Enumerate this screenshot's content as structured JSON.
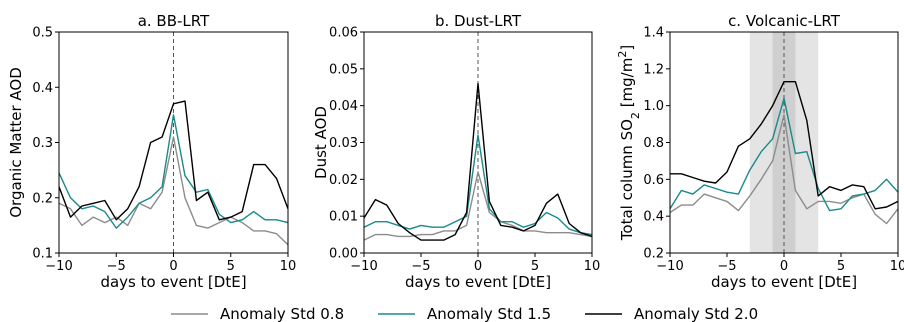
{
  "legend": {
    "entries": [
      {
        "label": "Anomaly Std 0.8",
        "color": "#8c8c8c"
      },
      {
        "label": "Anomaly Std 1.5",
        "color": "#1a8a8a"
      },
      {
        "label": "Anomaly Std 2.0",
        "color": "#000000"
      }
    ]
  },
  "chart_data": [
    {
      "type": "line",
      "title": "a. BB-LRT",
      "xlabel": "days to event [DtE]",
      "ylabel": "Organic Matter AOD",
      "xlim": [
        -10,
        10
      ],
      "ylim": [
        0.1,
        0.5
      ],
      "xticks": [
        -10,
        -5,
        0,
        5,
        10
      ],
      "yticks": [
        0.1,
        0.2,
        0.3,
        0.4,
        0.5
      ],
      "xtick_labels": [
        "−10",
        "−5",
        "0",
        "5",
        "10"
      ],
      "ytick_labels": [
        "0.1",
        "0.2",
        "0.3",
        "0.4",
        "0.5"
      ],
      "event_line": 0,
      "x": [
        -10,
        -9,
        -8,
        -7,
        -6,
        -5,
        -4,
        -3,
        -2,
        -1,
        0,
        1,
        2,
        3,
        4,
        5,
        6,
        7,
        8,
        9,
        10
      ],
      "series": [
        {
          "name": "Anomaly Std 0.8",
          "color": "#8c8c8c",
          "values": [
            0.19,
            0.18,
            0.15,
            0.165,
            0.155,
            0.165,
            0.15,
            0.19,
            0.18,
            0.21,
            0.31,
            0.2,
            0.15,
            0.145,
            0.155,
            0.165,
            0.155,
            0.14,
            0.14,
            0.135,
            0.115
          ]
        },
        {
          "name": "Anomaly Std 1.5",
          "color": "#1a8a8a",
          "values": [
            0.245,
            0.2,
            0.18,
            0.185,
            0.175,
            0.145,
            0.165,
            0.19,
            0.2,
            0.22,
            0.35,
            0.24,
            0.21,
            0.215,
            0.17,
            0.155,
            0.16,
            0.175,
            0.16,
            0.16,
            0.155
          ]
        },
        {
          "name": "Anomaly Std 2.0",
          "color": "#000000",
          "values": [
            0.22,
            0.165,
            0.185,
            0.19,
            0.195,
            0.16,
            0.18,
            0.22,
            0.3,
            0.31,
            0.37,
            0.375,
            0.195,
            0.21,
            0.16,
            0.165,
            0.175,
            0.26,
            0.26,
            0.235,
            0.18
          ]
        }
      ]
    },
    {
      "type": "line",
      "title": "b. Dust-LRT",
      "xlabel": "days to event [DtE]",
      "ylabel": "Dust AOD",
      "xlim": [
        -10,
        10
      ],
      "ylim": [
        0.0,
        0.06
      ],
      "xticks": [
        -10,
        -5,
        0,
        5,
        10
      ],
      "yticks": [
        0.0,
        0.01,
        0.02,
        0.03,
        0.04,
        0.05,
        0.06
      ],
      "xtick_labels": [
        "−10",
        "−5",
        "0",
        "5",
        "10"
      ],
      "ytick_labels": [
        "0.00",
        "0.01",
        "0.02",
        "0.03",
        "0.04",
        "0.05",
        "0.06"
      ],
      "event_line": 0,
      "x": [
        -10,
        -9,
        -8,
        -7,
        -6,
        -5,
        -4,
        -3,
        -2,
        -1,
        0,
        1,
        2,
        3,
        4,
        5,
        6,
        7,
        8,
        9,
        10
      ],
      "series": [
        {
          "name": "Anomaly Std 0.8",
          "color": "#8c8c8c",
          "values": [
            0.0035,
            0.005,
            0.005,
            0.0045,
            0.0045,
            0.005,
            0.005,
            0.006,
            0.006,
            0.0075,
            0.022,
            0.011,
            0.0085,
            0.0075,
            0.006,
            0.006,
            0.0055,
            0.0055,
            0.0055,
            0.005,
            0.0045
          ]
        },
        {
          "name": "Anomaly Std 1.5",
          "color": "#1a8a8a",
          "values": [
            0.007,
            0.0085,
            0.0085,
            0.0075,
            0.0065,
            0.0075,
            0.007,
            0.007,
            0.0085,
            0.01,
            0.032,
            0.012,
            0.0085,
            0.0085,
            0.007,
            0.008,
            0.011,
            0.0095,
            0.0065,
            0.0055,
            0.005
          ]
        },
        {
          "name": "Anomaly Std 2.0",
          "color": "#000000",
          "values": [
            0.0095,
            0.0145,
            0.013,
            0.008,
            0.0055,
            0.0035,
            0.0035,
            0.0035,
            0.005,
            0.011,
            0.046,
            0.014,
            0.0075,
            0.007,
            0.006,
            0.0075,
            0.0135,
            0.016,
            0.008,
            0.0055,
            0.0045
          ]
        }
      ]
    },
    {
      "type": "line",
      "title": "c. Volcanic-LRT",
      "xlabel": "days to event [DtE]",
      "ylabel": "Total column SO₂ [mg/m²]",
      "ylabel_main": "Total column SO",
      "ylabel_sub": "2",
      "ylabel_unit": " [mg/m",
      "ylabel_sup": "2",
      "ylabel_end": "]",
      "xlim": [
        -10,
        10
      ],
      "ylim": [
        0.2,
        1.4
      ],
      "xticks": [
        -10,
        -5,
        0,
        5,
        10
      ],
      "yticks": [
        0.2,
        0.4,
        0.6,
        0.8,
        1.0,
        1.2,
        1.4
      ],
      "xtick_labels": [
        "−10",
        "−5",
        "0",
        "5",
        "10"
      ],
      "ytick_labels": [
        "0.2",
        "0.4",
        "0.6",
        "0.8",
        "1.0",
        "1.2",
        "1.4"
      ],
      "event_line": 0,
      "shaded_outer": [
        -3,
        3
      ],
      "shaded_inner": [
        -1,
        1
      ],
      "x": [
        -10,
        -9,
        -8,
        -7,
        -6,
        -5,
        -4,
        -3,
        -2,
        -1,
        0,
        1,
        2,
        3,
        4,
        5,
        6,
        7,
        8,
        9,
        10
      ],
      "series": [
        {
          "name": "Anomaly Std 0.8",
          "color": "#8c8c8c",
          "values": [
            0.42,
            0.46,
            0.46,
            0.52,
            0.5,
            0.48,
            0.43,
            0.51,
            0.6,
            0.7,
            0.95,
            0.54,
            0.44,
            0.48,
            0.48,
            0.47,
            0.5,
            0.52,
            0.41,
            0.36,
            0.44
          ]
        },
        {
          "name": "Anomaly Std 1.5",
          "color": "#1a8a8a",
          "values": [
            0.44,
            0.54,
            0.52,
            0.57,
            0.55,
            0.53,
            0.52,
            0.65,
            0.75,
            0.82,
            1.04,
            0.74,
            0.75,
            0.55,
            0.43,
            0.44,
            0.51,
            0.52,
            0.54,
            0.6,
            0.53
          ]
        },
        {
          "name": "Anomaly Std 2.0",
          "color": "#000000",
          "values": [
            0.63,
            0.63,
            0.61,
            0.59,
            0.58,
            0.64,
            0.78,
            0.82,
            0.9,
            1.0,
            1.13,
            1.13,
            0.92,
            0.51,
            0.56,
            0.54,
            0.57,
            0.56,
            0.44,
            0.45,
            0.48
          ]
        }
      ]
    }
  ]
}
